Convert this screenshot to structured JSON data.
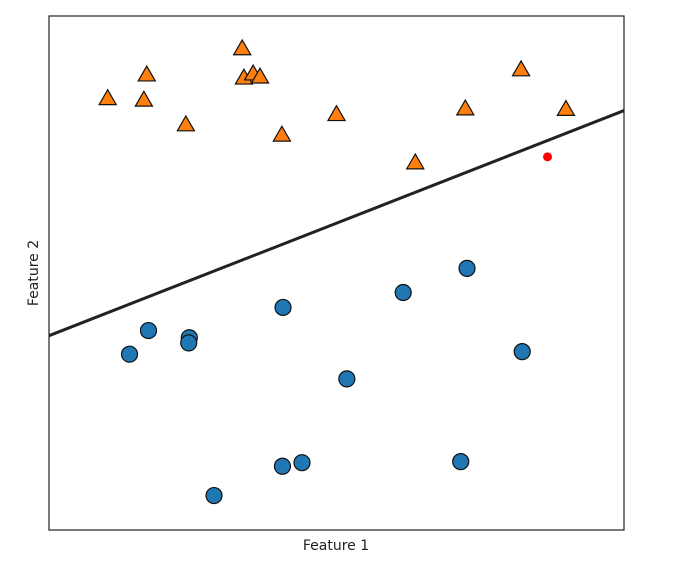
{
  "chart_data": {
    "type": "scatter",
    "title": "",
    "xlabel": "Feature 1",
    "ylabel": "Feature 2",
    "xlim": [
      0,
      100
    ],
    "ylim": [
      0,
      100
    ],
    "xticks_visible": false,
    "yticks_visible": false,
    "grid": false,
    "series": [
      {
        "marker": "triangle",
        "color": "#ff7f0e",
        "points": [
          {
            "x": 10.2,
            "y": 83.9
          },
          {
            "x": 16.5,
            "y": 83.6
          },
          {
            "x": 17.0,
            "y": 88.5
          },
          {
            "x": 23.8,
            "y": 78.8
          },
          {
            "x": 33.6,
            "y": 93.6
          },
          {
            "x": 33.9,
            "y": 87.9
          },
          {
            "x": 35.5,
            "y": 88.7
          },
          {
            "x": 36.7,
            "y": 88.1
          },
          {
            "x": 40.5,
            "y": 76.8
          },
          {
            "x": 50.0,
            "y": 80.8
          },
          {
            "x": 63.7,
            "y": 71.4
          },
          {
            "x": 72.4,
            "y": 81.9
          },
          {
            "x": 82.1,
            "y": 89.5
          },
          {
            "x": 89.9,
            "y": 81.8
          }
        ]
      },
      {
        "marker": "circle",
        "color": "#1f77b4",
        "points": [
          {
            "x": 14.0,
            "y": 34.2
          },
          {
            "x": 17.3,
            "y": 38.8
          },
          {
            "x": 24.4,
            "y": 37.4
          },
          {
            "x": 24.3,
            "y": 36.4
          },
          {
            "x": 28.7,
            "y": 6.7
          },
          {
            "x": 40.6,
            "y": 12.4
          },
          {
            "x": 40.7,
            "y": 43.3
          },
          {
            "x": 44.0,
            "y": 13.1
          },
          {
            "x": 51.8,
            "y": 29.4
          },
          {
            "x": 61.6,
            "y": 46.2
          },
          {
            "x": 71.6,
            "y": 13.3
          },
          {
            "x": 72.7,
            "y": 50.9
          },
          {
            "x": 82.3,
            "y": 34.7
          }
        ]
      }
    ],
    "extra_point": {
      "x": 86.7,
      "y": 72.6,
      "color": "#ff0000"
    },
    "decision_line": {
      "x": [
        0,
        100
      ],
      "y": [
        37.8,
        81.6
      ],
      "color": "#222222"
    }
  }
}
